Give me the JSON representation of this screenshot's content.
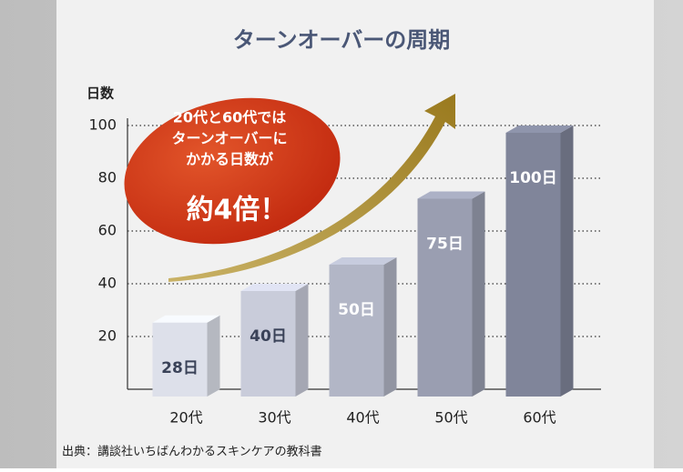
{
  "chart_data": {
    "type": "bar3d",
    "title": "ターンオーバーの周期",
    "y_label": "日数",
    "categories": [
      "20代",
      "30代",
      "40代",
      "50代",
      "60代"
    ],
    "values": [
      28,
      40,
      50,
      75,
      100
    ],
    "value_labels": [
      "28日",
      "40日",
      "50日",
      "75日",
      "100日"
    ],
    "colors": [
      "#dde0ea",
      "#c9ccda",
      "#b2b6c6",
      "#9a9eb1",
      "#80859a"
    ],
    "label_colors": [
      "#3a4258",
      "#3a4258",
      "#ffffff",
      "#ffffff",
      "#ffffff"
    ],
    "ylim": [
      0,
      100
    ],
    "yticks": [
      20,
      40,
      60,
      80,
      100
    ],
    "grid": true,
    "annotation": {
      "lines": [
        "20代と60代では",
        "ターンオーバーに",
        "かかる日数が"
      ],
      "emphasis": "約4倍！"
    },
    "source": "出典：講談社いちばんわかるスキンケアの教科書"
  }
}
